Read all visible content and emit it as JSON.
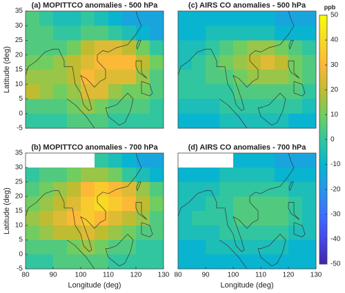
{
  "chart_data": [
    {
      "type": "heatmap",
      "title": "(a) MOPITTCO anomalies - 500 hPa",
      "ylabel": "Latitude (deg)",
      "xlim": [
        80,
        130
      ],
      "ylim": [
        -5,
        35
      ],
      "yticks": [
        -5,
        0,
        5,
        10,
        15,
        20,
        25,
        30,
        35
      ],
      "x": [
        82.5,
        87.5,
        92.5,
        97.5,
        102.5,
        107.5,
        112.5,
        117.5,
        122.5,
        127.5
      ],
      "y": [
        32.5,
        27.5,
        22.5,
        17.5,
        12.5,
        7.5,
        2.5,
        -2.5
      ],
      "z": [
        [
          5,
          0,
          -5,
          -5,
          0,
          -5,
          -10,
          -15,
          -15,
          -15
        ],
        [
          5,
          5,
          0,
          0,
          5,
          5,
          0,
          -5,
          -10,
          -15
        ],
        [
          5,
          5,
          5,
          10,
          20,
          25,
          25,
          20,
          10,
          0
        ],
        [
          10,
          10,
          15,
          20,
          25,
          30,
          30,
          30,
          20,
          10
        ],
        [
          15,
          15,
          15,
          20,
          30,
          25,
          25,
          25,
          15,
          5
        ],
        [
          20,
          15,
          10,
          15,
          25,
          25,
          15,
          10,
          10,
          5
        ],
        [
          5,
          5,
          5,
          10,
          15,
          10,
          5,
          5,
          5,
          0
        ],
        [
          0,
          0,
          0,
          5,
          5,
          5,
          0,
          0,
          0,
          0
        ]
      ]
    },
    {
      "type": "heatmap",
      "title": "(c) AIRS CO anomalies - 500 hPa",
      "xlim": [
        80,
        130
      ],
      "ylim": [
        -5,
        35
      ],
      "x": [
        82.5,
        87.5,
        92.5,
        97.5,
        102.5,
        107.5,
        112.5,
        117.5,
        122.5,
        127.5
      ],
      "y": [
        32.5,
        27.5,
        22.5,
        17.5,
        12.5,
        7.5,
        2.5,
        -2.5
      ],
      "z": [
        [
          -10,
          -10,
          -10,
          -10,
          -10,
          -10,
          -10,
          -15,
          -15,
          -15
        ],
        [
          -10,
          -10,
          -5,
          -5,
          -5,
          -5,
          -5,
          -10,
          -10,
          -10
        ],
        [
          -5,
          -5,
          0,
          5,
          10,
          15,
          15,
          10,
          5,
          0
        ],
        [
          -5,
          0,
          5,
          10,
          15,
          20,
          25,
          20,
          10,
          5
        ],
        [
          0,
          0,
          5,
          5,
          10,
          15,
          15,
          15,
          10,
          5
        ],
        [
          0,
          0,
          0,
          0,
          5,
          5,
          5,
          5,
          5,
          0
        ],
        [
          -5,
          -5,
          -5,
          0,
          0,
          0,
          0,
          0,
          0,
          -5
        ],
        [
          -10,
          -10,
          -10,
          -5,
          -5,
          -5,
          -5,
          -5,
          -10,
          -10
        ]
      ]
    },
    {
      "type": "heatmap",
      "title": "(b) MOPITTCO anomalies - 700 hPa",
      "ylabel": "Latitude (deg)",
      "xlabel": "Longitude (deg)",
      "xlim": [
        80,
        130
      ],
      "ylim": [
        -5,
        35
      ],
      "xticks": [
        80,
        90,
        100,
        110,
        120,
        130
      ],
      "yticks": [
        -5,
        0,
        5,
        10,
        15,
        20,
        25,
        30,
        35
      ],
      "x": [
        82.5,
        87.5,
        92.5,
        97.5,
        102.5,
        107.5,
        112.5,
        117.5,
        122.5,
        127.5
      ],
      "y": [
        32.5,
        27.5,
        22.5,
        17.5,
        12.5,
        7.5,
        2.5,
        -2.5
      ],
      "z": [
        [
          null,
          null,
          null,
          null,
          null,
          0,
          -5,
          -10,
          -15,
          -15
        ],
        [
          0,
          5,
          5,
          10,
          15,
          15,
          10,
          0,
          -5,
          -10
        ],
        [
          5,
          10,
          15,
          20,
          30,
          35,
          30,
          25,
          15,
          5
        ],
        [
          10,
          15,
          20,
          25,
          35,
          40,
          35,
          30,
          20,
          10
        ],
        [
          15,
          20,
          25,
          30,
          35,
          30,
          25,
          20,
          15,
          5
        ],
        [
          10,
          15,
          20,
          20,
          25,
          20,
          15,
          10,
          5,
          5
        ],
        [
          5,
          5,
          5,
          10,
          15,
          10,
          5,
          5,
          0,
          0
        ],
        [
          0,
          0,
          5,
          5,
          5,
          5,
          0,
          0,
          0,
          0
        ]
      ]
    },
    {
      "type": "heatmap",
      "title": "(d) AIRS CO anomalies - 700 hPa",
      "xlabel": "Longitude (deg)",
      "xlim": [
        80,
        130
      ],
      "ylim": [
        -5,
        35
      ],
      "xticks": [
        80,
        90,
        100,
        110,
        120,
        130
      ],
      "x": [
        82.5,
        87.5,
        92.5,
        97.5,
        102.5,
        107.5,
        112.5,
        117.5,
        122.5,
        127.5
      ],
      "y": [
        32.5,
        27.5,
        22.5,
        17.5,
        12.5,
        7.5,
        2.5,
        -2.5
      ],
      "z": [
        [
          null,
          null,
          null,
          null,
          -10,
          -10,
          -10,
          -15,
          -15,
          -15
        ],
        [
          -10,
          -10,
          -10,
          -5,
          -5,
          -5,
          -5,
          -10,
          -10,
          -10
        ],
        [
          -5,
          -5,
          -5,
          0,
          0,
          0,
          0,
          0,
          -5,
          -5
        ],
        [
          -5,
          -5,
          0,
          0,
          5,
          5,
          5,
          5,
          0,
          -5
        ],
        [
          -5,
          0,
          0,
          0,
          5,
          5,
          5,
          5,
          0,
          -5
        ],
        [
          -5,
          -5,
          -5,
          0,
          0,
          0,
          0,
          0,
          -5,
          -5
        ],
        [
          -10,
          -10,
          -5,
          -5,
          -5,
          -5,
          -5,
          -5,
          -10,
          -10
        ],
        [
          -10,
          -10,
          -10,
          -10,
          -10,
          -10,
          -10,
          -10,
          -10,
          -10
        ]
      ]
    },
    {
      "type": "colorbar",
      "label": "ppb",
      "zlim": [
        -50,
        50
      ],
      "zticks": [
        50,
        40,
        30,
        20,
        10,
        0,
        -10,
        -20,
        -30,
        -40,
        -50
      ],
      "colormap": [
        "#3e26a8",
        "#4747eb",
        "#3e6fff",
        "#2796eb",
        "#08b4d0",
        "#31c69f",
        "#71cd60",
        "#c0bc31",
        "#fbb937",
        "#f6da25",
        "#f9fb0e"
      ]
    }
  ]
}
